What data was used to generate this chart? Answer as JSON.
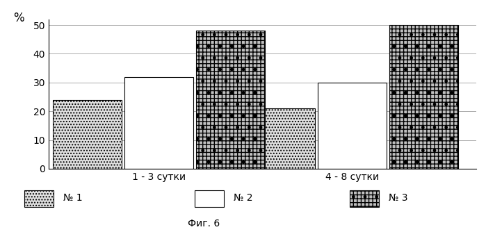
{
  "groups": [
    "1 - 3 сутки",
    "4 - 8 сутки"
  ],
  "series": [
    {
      "label": "№ 1",
      "values": [
        24,
        21
      ],
      "hatch": "....",
      "facecolor": "#e0e0e0",
      "edgecolor": "#000000"
    },
    {
      "label": "№ 2",
      "values": [
        32,
        30
      ],
      "hatch": "",
      "facecolor": "#ffffff",
      "edgecolor": "#000000"
    },
    {
      "label": "№ 3",
      "values": [
        48,
        50
      ],
      "hatch": "+++.",
      "facecolor": "#c0c0c0",
      "edgecolor": "#000000"
    }
  ],
  "ylabel": "%",
  "ylim": [
    0,
    52
  ],
  "yticks": [
    0,
    10,
    20,
    30,
    40,
    50
  ],
  "figcaption": "Фиг. 6",
  "bar_width": 0.25,
  "group_positions": [
    0.4,
    1.1
  ],
  "background_color": "#ffffff"
}
